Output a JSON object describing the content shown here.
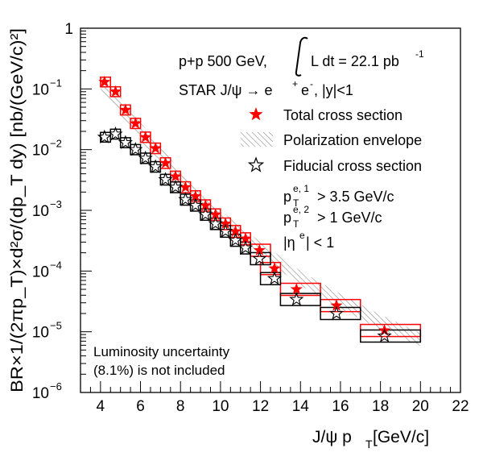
{
  "chart_data": {
    "type": "scatter",
    "xlabel": "J/ψ p",
    "xlabel_sub": "T",
    "xlabel_unit": " [GeV/c]",
    "ylabel": "BR×1/(2πp_T)×d²σ/(dp_T dy) [nb/(GeV/c)²]",
    "x_range": [
      3,
      22
    ],
    "y_range": [
      1e-06,
      1
    ],
    "y_log": true,
    "x_ticks": [
      4,
      6,
      8,
      10,
      12,
      14,
      16,
      18,
      20,
      22
    ],
    "y_ticks": [
      {
        "value": 1,
        "base": "1",
        "exp": ""
      },
      {
        "value": 0.1,
        "base": "10",
        "exp": "−1"
      },
      {
        "value": 0.01,
        "base": "10",
        "exp": "−2"
      },
      {
        "value": 0.001,
        "base": "10",
        "exp": "−3"
      },
      {
        "value": 0.0001,
        "base": "10",
        "exp": "−4"
      },
      {
        "value": 1e-05,
        "base": "10",
        "exp": "−5"
      },
      {
        "value": 1e-06,
        "base": "10",
        "exp": "−6"
      }
    ],
    "annotations": {
      "collision": "p+p 500 GeV,",
      "lumi_base": "L dt = 22.1 pb",
      "lumi_exp": "-1",
      "star_label": "STAR  J/ψ → e",
      "star_rest": ", |y|<1",
      "cut1_main": "p",
      "cut1_sup": "e, 1",
      "cut1_sub": "T",
      "cut1_val": "> 3.5 GeV/c",
      "cut2_main": "p",
      "cut2_sup": "e, 2",
      "cut2_sub": "T",
      "cut2_val": "> 1 GeV/c",
      "cut3_text": "|η",
      "cut3_sup": "e",
      "cut3_rest": "| < 1",
      "lumi_note_1": "Luminosity uncertainty",
      "lumi_note_2": "(8.1%) is not included"
    },
    "legend": {
      "placement": "top-right",
      "entries": [
        {
          "label": "Total cross section",
          "marker": "filled-star"
        },
        {
          "label": "Polarization envelope",
          "marker": "hatched-band"
        },
        {
          "label": "Fiducial cross section",
          "marker": "open-star"
        }
      ]
    },
    "colors": {
      "total": "#ff0000",
      "fiducial": "#000000",
      "band": "#999999"
    },
    "series": [
      {
        "name": "Total cross section",
        "points": [
          {
            "x": 4.2,
            "y": 0.13,
            "xlo": 4.0,
            "xhi": 4.5
          },
          {
            "x": 4.75,
            "y": 0.09,
            "xlo": 4.5,
            "xhi": 5.0
          },
          {
            "x": 5.25,
            "y": 0.045,
            "xlo": 5.0,
            "xhi": 5.5
          },
          {
            "x": 5.75,
            "y": 0.027,
            "xlo": 5.5,
            "xhi": 6.0
          },
          {
            "x": 6.25,
            "y": 0.016,
            "xlo": 6.0,
            "xhi": 6.5
          },
          {
            "x": 6.75,
            "y": 0.0105,
            "xlo": 6.5,
            "xhi": 7.0
          },
          {
            "x": 7.25,
            "y": 0.006,
            "xlo": 7.0,
            "xhi": 7.5
          },
          {
            "x": 7.75,
            "y": 0.0036,
            "xlo": 7.5,
            "xhi": 8.0
          },
          {
            "x": 8.25,
            "y": 0.0024,
            "xlo": 8.0,
            "xhi": 8.5
          },
          {
            "x": 8.75,
            "y": 0.0017,
            "xlo": 8.5,
            "xhi": 9.0
          },
          {
            "x": 9.25,
            "y": 0.0012,
            "xlo": 9.0,
            "xhi": 9.5
          },
          {
            "x": 9.75,
            "y": 0.00085,
            "xlo": 9.5,
            "xhi": 10.0
          },
          {
            "x": 10.25,
            "y": 0.0006,
            "xlo": 10.0,
            "xhi": 10.5
          },
          {
            "x": 10.75,
            "y": 0.00045,
            "xlo": 10.5,
            "xhi": 11.0
          },
          {
            "x": 11.25,
            "y": 0.00034,
            "xlo": 11.0,
            "xhi": 11.5
          },
          {
            "x": 11.95,
            "y": 0.00022,
            "xlo": 11.5,
            "xhi": 12.5
          },
          {
            "x": 12.7,
            "y": 0.00011,
            "xlo": 12.0,
            "xhi": 13.0
          },
          {
            "x": 13.8,
            "y": 5e-05,
            "xlo": 13.0,
            "xhi": 15.0
          },
          {
            "x": 15.8,
            "y": 2.7e-05,
            "xlo": 15.0,
            "xhi": 17.0
          },
          {
            "x": 18.2,
            "y": 1.05e-05,
            "xlo": 17.0,
            "xhi": 20.0
          }
        ]
      },
      {
        "name": "Fiducial cross section",
        "points": [
          {
            "x": 4.2,
            "y": 0.016,
            "xlo": 4.0,
            "xhi": 4.5
          },
          {
            "x": 4.75,
            "y": 0.018,
            "xlo": 4.5,
            "xhi": 5.0
          },
          {
            "x": 5.25,
            "y": 0.013,
            "xlo": 5.0,
            "xhi": 5.5
          },
          {
            "x": 5.75,
            "y": 0.01,
            "xlo": 5.5,
            "xhi": 6.0
          },
          {
            "x": 6.25,
            "y": 0.0072,
            "xlo": 6.0,
            "xhi": 6.5
          },
          {
            "x": 6.75,
            "y": 0.0052,
            "xlo": 6.5,
            "xhi": 7.0
          },
          {
            "x": 7.25,
            "y": 0.0032,
            "xlo": 7.0,
            "xhi": 7.5
          },
          {
            "x": 7.75,
            "y": 0.0024,
            "xlo": 7.5,
            "xhi": 8.0
          },
          {
            "x": 8.25,
            "y": 0.0015,
            "xlo": 8.0,
            "xhi": 8.5
          },
          {
            "x": 8.75,
            "y": 0.0012,
            "xlo": 8.5,
            "xhi": 9.0
          },
          {
            "x": 9.25,
            "y": 0.00085,
            "xlo": 9.0,
            "xhi": 9.5
          },
          {
            "x": 9.75,
            "y": 0.0006,
            "xlo": 9.5,
            "xhi": 10.0
          },
          {
            "x": 10.25,
            "y": 0.00045,
            "xlo": 10.0,
            "xhi": 10.5
          },
          {
            "x": 10.75,
            "y": 0.00032,
            "xlo": 10.5,
            "xhi": 11.0
          },
          {
            "x": 11.25,
            "y": 0.00024,
            "xlo": 11.0,
            "xhi": 11.5
          },
          {
            "x": 11.95,
            "y": 0.00016,
            "xlo": 11.5,
            "xhi": 12.5
          },
          {
            "x": 12.7,
            "y": 7.5e-05,
            "xlo": 12.0,
            "xhi": 13.0
          },
          {
            "x": 13.8,
            "y": 3.4e-05,
            "xlo": 13.0,
            "xhi": 15.0
          },
          {
            "x": 15.8,
            "y": 2e-05,
            "xlo": 15.0,
            "xhi": 17.0
          },
          {
            "x": 18.2,
            "y": 8.5e-06,
            "xlo": 17.0,
            "xhi": 20.0
          }
        ]
      }
    ],
    "envelope": {
      "x": [
        4.0,
        6.0,
        8.0,
        10.0,
        12.0,
        14.0,
        16.0,
        18.0,
        20.0
      ],
      "lo": [
        0.1,
        0.014,
        0.0025,
        0.00062,
        0.00018,
        5.8e-05,
        2.4e-05,
        1.1e-05,
        5.8e-06
      ],
      "hi": [
        0.19,
        0.028,
        0.0045,
        0.001,
        0.0003,
        0.0001,
        4.2e-05,
        1.9e-05,
        9.5e-06
      ]
    }
  }
}
